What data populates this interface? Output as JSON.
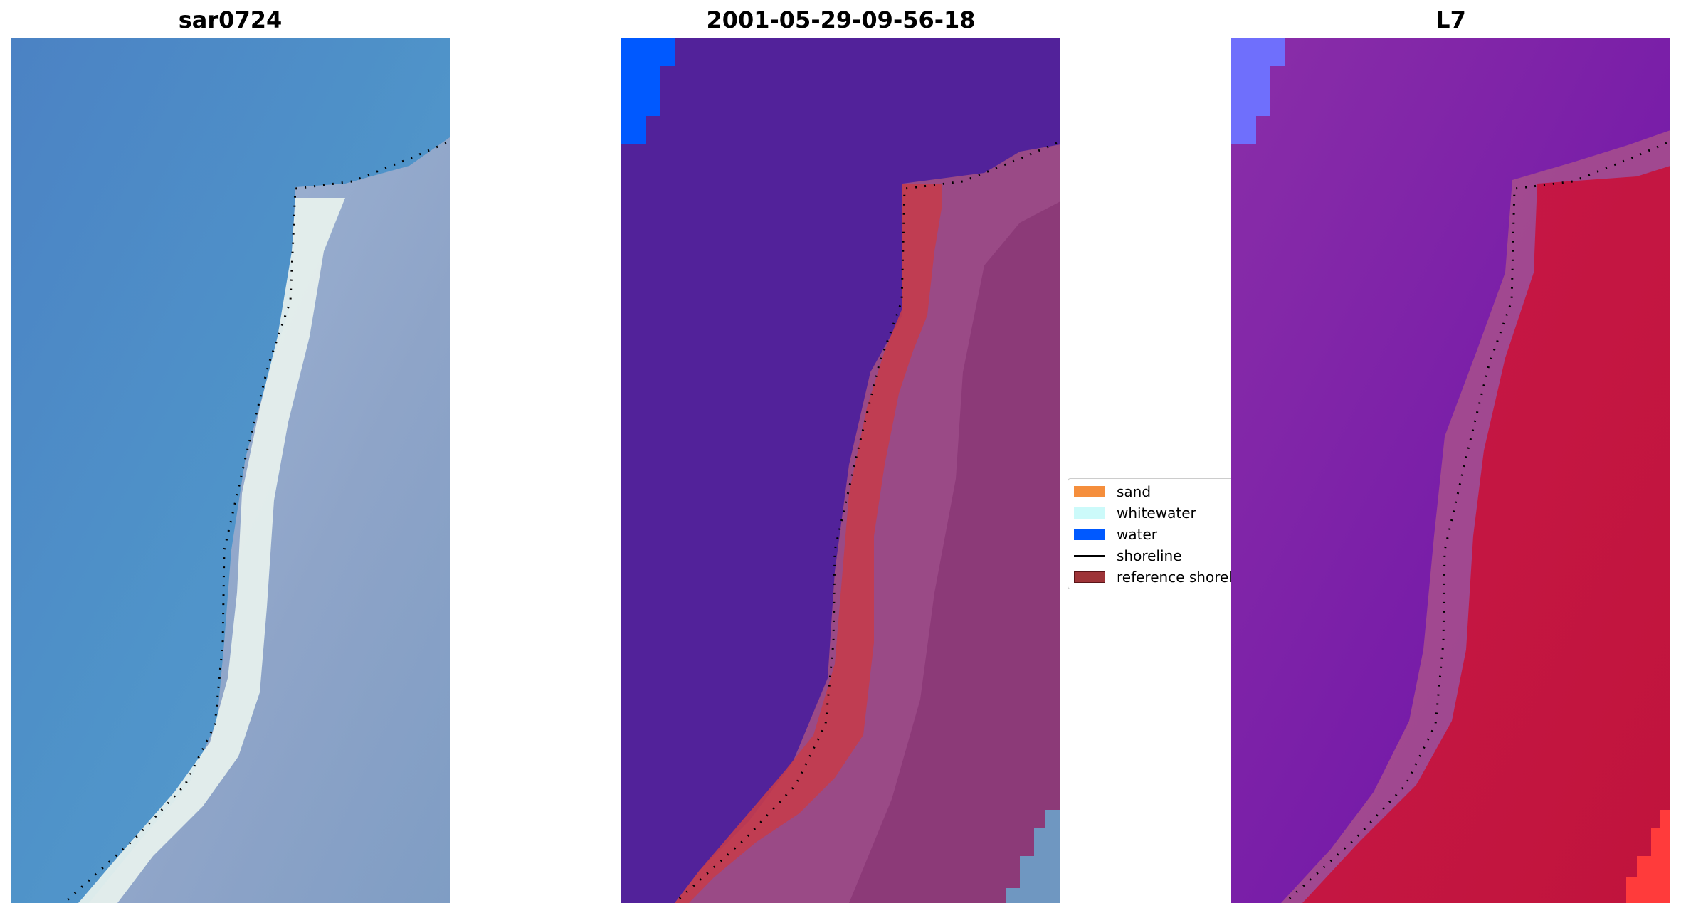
{
  "panels": [
    {
      "title": "sar0724"
    },
    {
      "title": "2001-05-29-09-56-18"
    },
    {
      "title": "L7"
    }
  ],
  "legend": {
    "items": [
      {
        "label": "sand",
        "type": "patch",
        "color": "#f58e3c"
      },
      {
        "label": "whitewater",
        "type": "patch",
        "color": "#ccfafa"
      },
      {
        "label": "water",
        "type": "patch",
        "color": "#0059ff"
      },
      {
        "label": "shoreline",
        "type": "line",
        "color": "#000000"
      },
      {
        "label": "reference shoreline buffer",
        "type": "patch",
        "color": "#9e3438",
        "edge": "#5a1418"
      }
    ]
  },
  "colors": {
    "rgb_water": "#4d8cc6",
    "rgb_beach": "#e9f2ee",
    "rgb_land": "#8fa6cc",
    "class_water": "#52229a",
    "class_land": "#9a4a86",
    "class_buffer": "#c43c4c",
    "ndwi_water": "#7d24a8",
    "ndwi_land": "#c41444",
    "corner_water": "#0059ff",
    "corner_water_light": "#6f6ffc"
  },
  "icons": {
    "shoreline_marker": "dotted-shoreline"
  }
}
